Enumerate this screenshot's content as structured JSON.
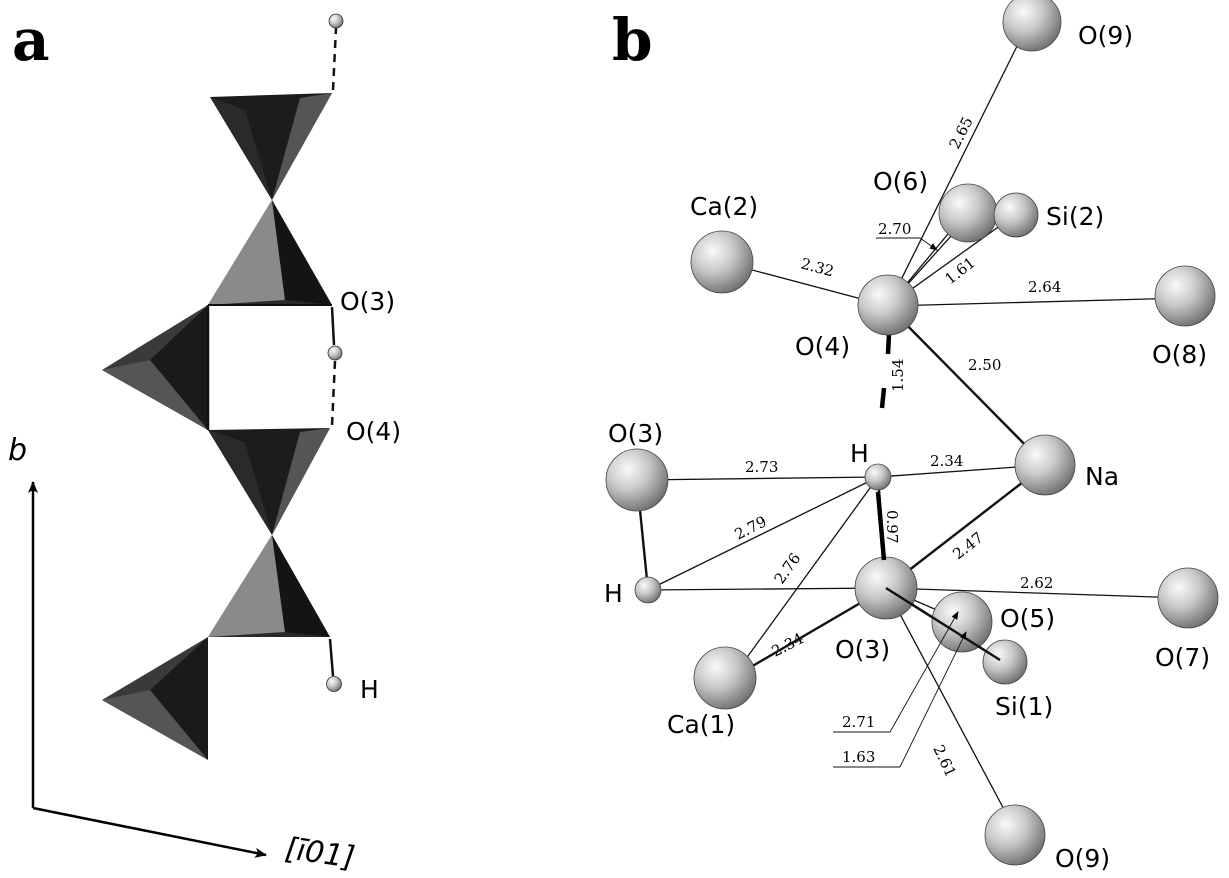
{
  "panels": {
    "a": {
      "letter": "a",
      "labels": {
        "o3": "O(3)",
        "o4": "O(4)",
        "h": "H"
      },
      "axes": {
        "vertical": "b",
        "horizontal": "[ī01]"
      }
    },
    "b": {
      "letter": "b",
      "atoms": {
        "o9_top": "O(9)",
        "o6": "O(6)",
        "si2": "Si(2)",
        "ca2": "Ca(2)",
        "o4": "O(4)",
        "o8": "O(8)",
        "o3_left": "O(3)",
        "h_top": "H",
        "na": "Na",
        "h_left": "H",
        "o3_center": "O(3)",
        "o5": "O(5)",
        "o7": "O(7)",
        "ca1": "Ca(1)",
        "si1": "Si(1)",
        "o9_bottom": "O(9)"
      },
      "distances": {
        "o4_o9": "2.65",
        "o4_o6": "2.70",
        "o4_ca2": "2.32",
        "o4_si2": "1.61",
        "o4_o8": "2.64",
        "o4_na": "2.50",
        "o4_h": "1.54",
        "o3_h_top": "2.73",
        "h_na": "2.34",
        "h_o3_left": "2.79",
        "h_o3": "0.97",
        "ca1_h": "2.76",
        "o3_na": "2.47",
        "o3_o7": "2.62",
        "o3_ca1": "2.34",
        "o3_o5": "2.71",
        "o3_si1": "1.63",
        "o3_o9": "2.61"
      }
    }
  },
  "colors": {
    "ink": "#000000",
    "tetra_dark": "#1e1e1e",
    "tetra_mid": "#4a4a4a",
    "tetra_light": "#8c8c8c",
    "atom_highlight": "#f8f8f8",
    "atom_shadow": "#6e6e6e"
  }
}
